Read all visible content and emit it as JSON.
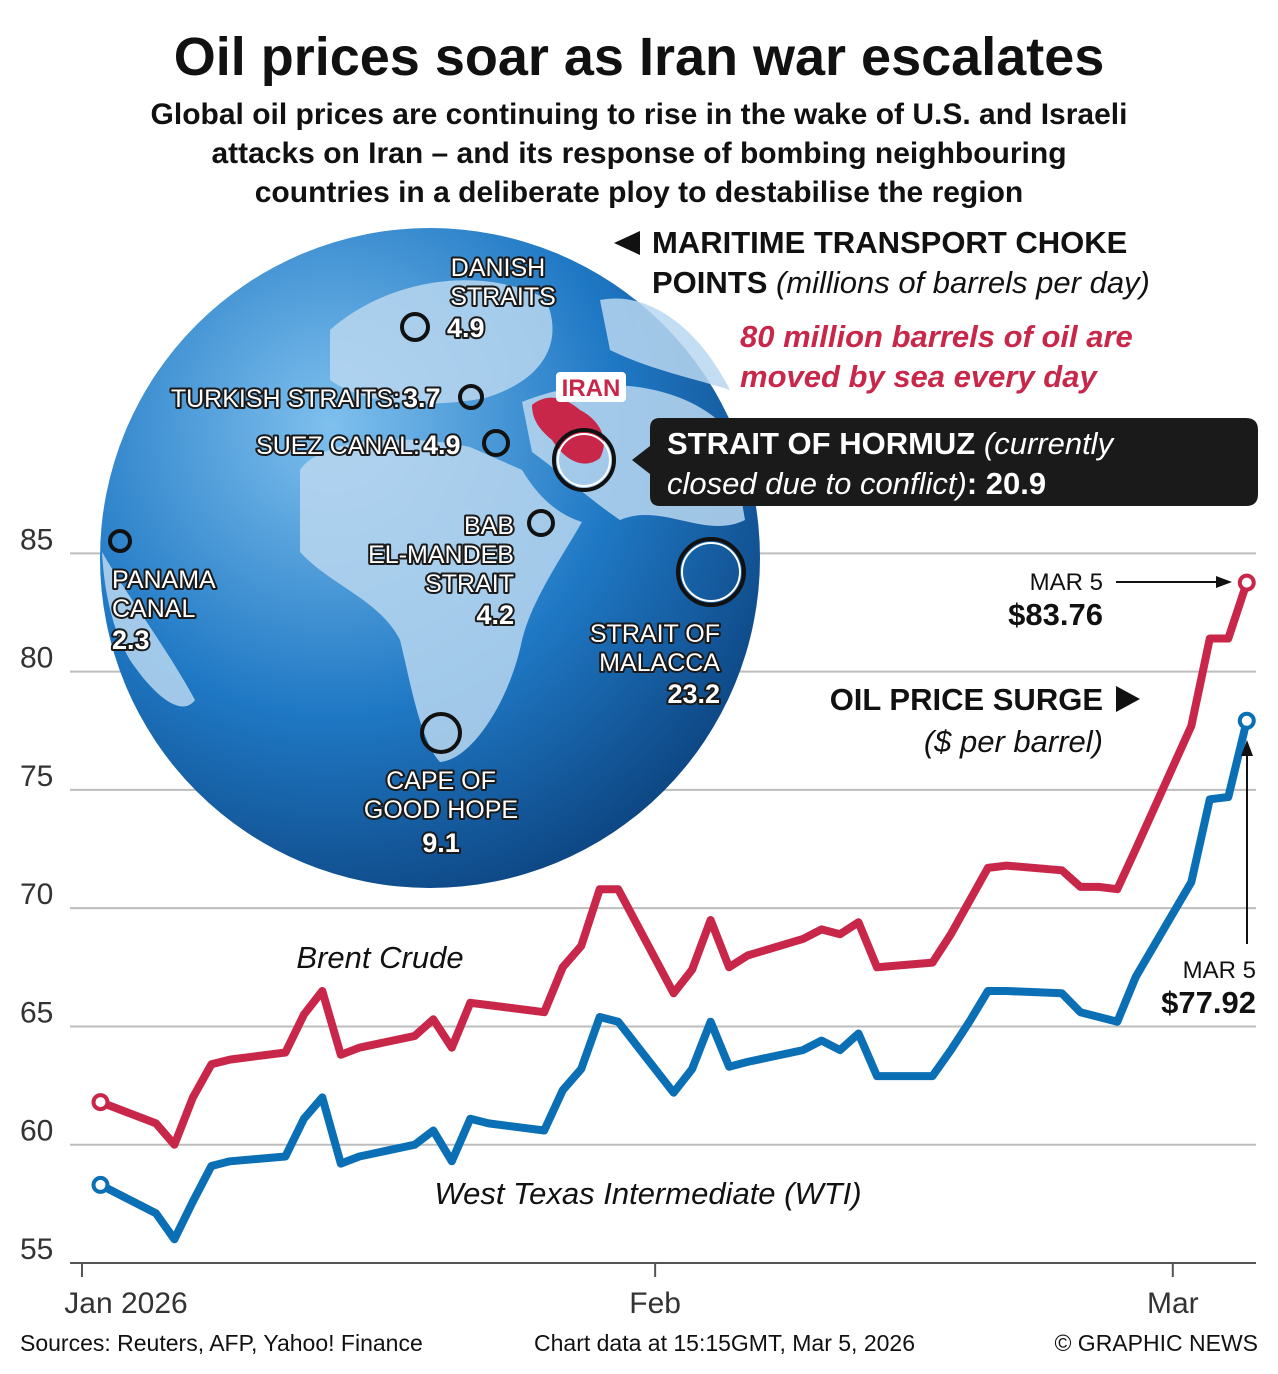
{
  "header": {
    "title": "Oil prices soar as Iran war escalates",
    "subtitle_lines": [
      "Global oil prices are continuing to rise in the wake of U.S. and Israeli",
      "attacks on Iran – and its response of bombing neighbouring",
      "countries in a deliberate ploy to destabilise the region"
    ]
  },
  "map": {
    "heading": "MARITIME TRANSPORT CHOKE",
    "heading_2": "POINTS",
    "unit": "(millions of barrels per day)",
    "note_lines": [
      "80 million barrels of oil are",
      "moved by sea every day"
    ],
    "country": "IRAN",
    "choke_points": [
      {
        "lines": [
          "DANISH",
          "STRAITS"
        ],
        "value": 4.9
      },
      {
        "lines": [
          "TURKISH STRAITS:"
        ],
        "value": 3.7
      },
      {
        "lines": [
          "SUEZ CANAL:"
        ],
        "value": 4.9
      },
      {
        "lines": [
          "BAB",
          "EL-MANDEB",
          "STRAIT"
        ],
        "value": 4.2
      },
      {
        "lines": [
          "STRAIT OF",
          "MALACCA"
        ],
        "value": 23.2
      },
      {
        "lines": [
          "PANAMA",
          "CANAL"
        ],
        "value": 2.3
      },
      {
        "lines": [
          "CAPE OF",
          "GOOD HOPE"
        ],
        "value": 9.1
      }
    ],
    "hormuz": {
      "name": "STRAIT OF HORMUZ",
      "note_lines": [
        "(currently",
        "closed due to conflict)"
      ],
      "separator": ":",
      "value": 20.9
    }
  },
  "chart_data": {
    "type": "line",
    "x": [
      2,
      5,
      6,
      7,
      8,
      9,
      12,
      13,
      14,
      15,
      16,
      19,
      20,
      21,
      22,
      23,
      26,
      27,
      28,
      29,
      30,
      33,
      34,
      35,
      36,
      37,
      40,
      41,
      42,
      43,
      44,
      47,
      48,
      49,
      50,
      51,
      54,
      55,
      56,
      57,
      58,
      61,
      62,
      63,
      64
    ],
    "xlim": [
      1,
      64.5
    ],
    "xticks": [
      {
        "value": 1,
        "label": "Jan 2026"
      },
      {
        "value": 32,
        "label": "Feb"
      },
      {
        "value": 60,
        "label": "Mar"
      }
    ],
    "ylim": [
      55,
      87
    ],
    "yticks": [
      55,
      60,
      65,
      70,
      75,
      80,
      85
    ],
    "grid": true,
    "series": [
      {
        "name": "Brent Crude",
        "color": "#c8274a",
        "values": [
          61.8,
          60.9,
          60.0,
          62.0,
          63.4,
          63.6,
          63.9,
          65.5,
          66.5,
          63.8,
          64.1,
          64.6,
          65.3,
          64.1,
          66.0,
          65.9,
          65.6,
          67.5,
          68.4,
          70.8,
          70.8,
          66.4,
          67.4,
          69.5,
          67.5,
          68.0,
          68.7,
          69.1,
          68.9,
          69.4,
          67.5,
          67.7,
          68.9,
          70.3,
          71.7,
          71.8,
          71.6,
          70.9,
          70.9,
          70.8,
          72.5,
          77.7,
          81.4,
          81.4,
          83.76
        ]
      },
      {
        "name": "West Texas Intermediate (WTI)",
        "color": "#0a6fb5",
        "values": [
          58.3,
          57.1,
          56.0,
          57.6,
          59.1,
          59.3,
          59.5,
          61.1,
          62.0,
          59.2,
          59.5,
          60.0,
          60.6,
          59.3,
          61.1,
          60.9,
          60.6,
          62.3,
          63.2,
          65.4,
          65.2,
          62.2,
          63.2,
          65.2,
          63.3,
          63.5,
          64.0,
          64.4,
          64.0,
          64.7,
          62.9,
          62.9,
          64.0,
          65.2,
          66.5,
          66.5,
          66.4,
          65.6,
          65.4,
          65.2,
          67.1,
          71.1,
          74.6,
          74.7,
          77.92
        ]
      }
    ],
    "annotations": [
      "MAR 5",
      "$83.76",
      "OIL PRICE SURGE",
      "($ per barrel)",
      "MAR 5",
      "$77.92"
    ]
  },
  "footer": {
    "sources": "Sources: Reuters, AFP, Yahoo! Finance",
    "timestamp": "Chart data at 15:15GMT, Mar 5, 2026",
    "credit": "© GRAPHIC NEWS"
  }
}
